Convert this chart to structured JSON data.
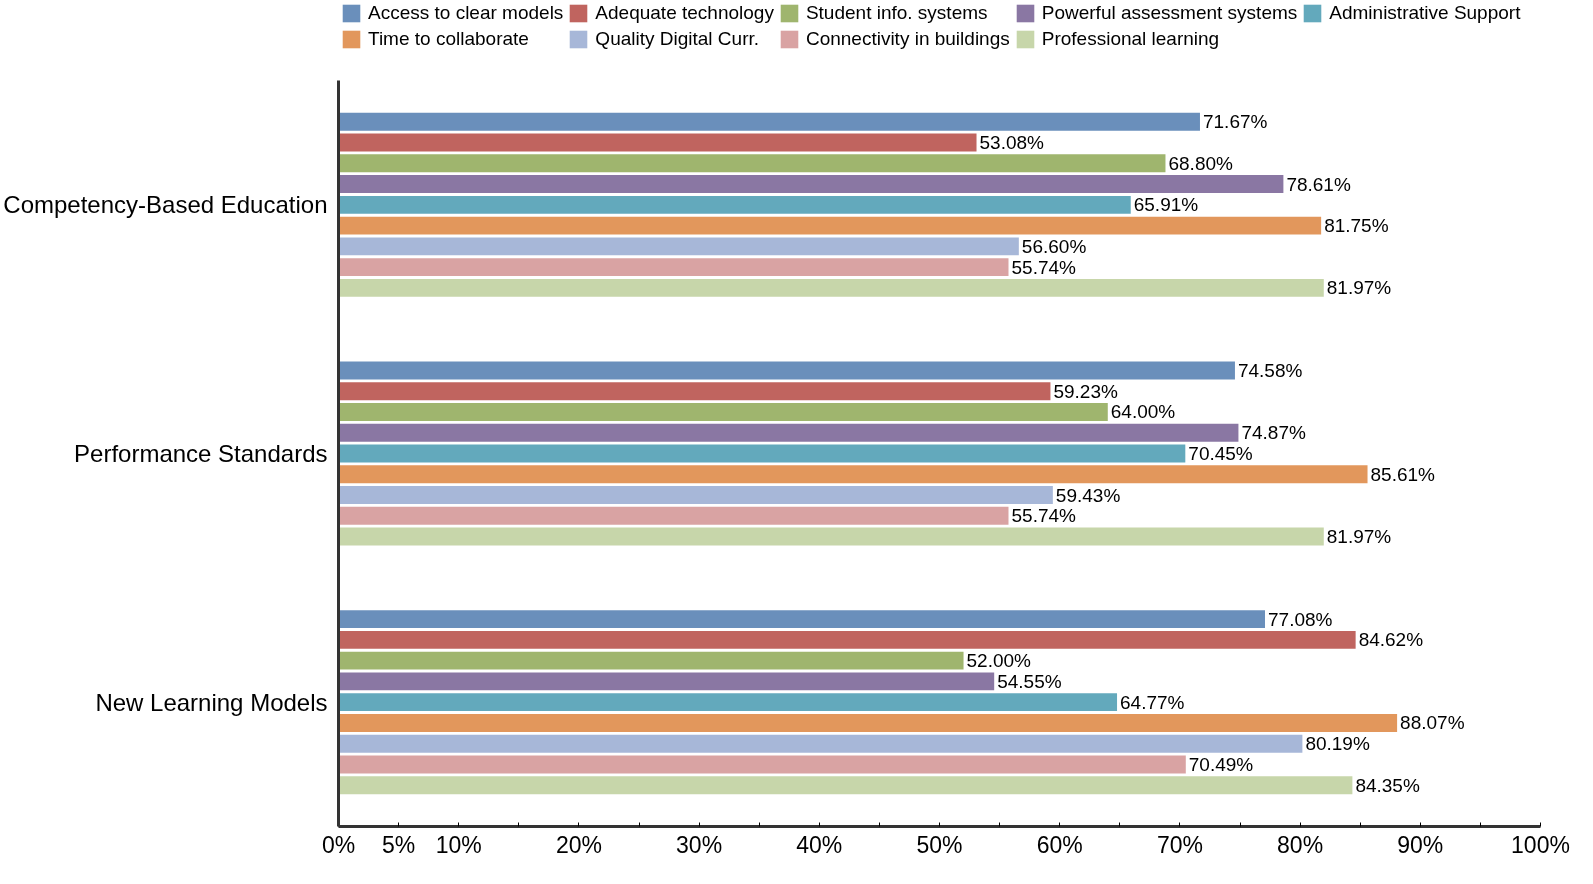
{
  "chart_data": {
    "type": "bar",
    "orientation": "horizontal",
    "legend": "top",
    "grid": false,
    "categories": [
      "Competency-Based Education",
      "Performance Standards",
      "New Learning Models"
    ],
    "xlim": [
      0,
      100
    ],
    "xticks": [
      {
        "value": 0,
        "label": "0%"
      },
      {
        "value": 5,
        "label": "5%"
      },
      {
        "value": 10,
        "label": "10%"
      },
      {
        "value": 15,
        "label": null
      },
      {
        "value": 20,
        "label": "20%"
      },
      {
        "value": 25,
        "label": null
      },
      {
        "value": 30,
        "label": "30%"
      },
      {
        "value": 35,
        "label": null
      },
      {
        "value": 40,
        "label": "40%"
      },
      {
        "value": 45,
        "label": null
      },
      {
        "value": 50,
        "label": "50%"
      },
      {
        "value": 55,
        "label": null
      },
      {
        "value": 60,
        "label": "60%"
      },
      {
        "value": 65,
        "label": null
      },
      {
        "value": 70,
        "label": "70%"
      },
      {
        "value": 75,
        "label": null
      },
      {
        "value": 80,
        "label": "80%"
      },
      {
        "value": 85,
        "label": null
      },
      {
        "value": 90,
        "label": "90%"
      },
      {
        "value": 95,
        "label": null
      },
      {
        "value": 100,
        "label": "100%"
      }
    ],
    "series": [
      {
        "name": "Access to clear models",
        "color": "#6a8fbb",
        "values": [
          71.67,
          74.58,
          77.08
        ],
        "value_labels": [
          "71.67%",
          "74.58%",
          "77.08%"
        ]
      },
      {
        "name": "Adequate technology",
        "color": "#c0645f",
        "values": [
          53.08,
          59.23,
          84.62
        ],
        "value_labels": [
          "53.08%",
          "59.23%",
          "84.62%"
        ]
      },
      {
        "name": "Student info. systems",
        "color": "#9fb56e",
        "values": [
          68.8,
          64.0,
          52.0
        ],
        "value_labels": [
          "68.80%",
          "64.00%",
          "52.00%"
        ]
      },
      {
        "name": "Powerful assessment systems",
        "color": "#8a77a3",
        "values": [
          78.61,
          74.87,
          54.55
        ],
        "value_labels": [
          "78.61%",
          "74.87%",
          "54.55%"
        ]
      },
      {
        "name": "Administrative Support",
        "color": "#63a9bc",
        "values": [
          65.91,
          70.45,
          64.77
        ],
        "value_labels": [
          "65.91%",
          "70.45%",
          "64.77%"
        ]
      },
      {
        "name": "Time to collaborate",
        "color": "#e2975c",
        "values": [
          81.75,
          85.61,
          88.07
        ],
        "value_labels": [
          "81.75%",
          "85.61%",
          "88.07%"
        ]
      },
      {
        "name": "Quality Digital Curr.",
        "color": "#a7b7d8",
        "values": [
          56.6,
          59.43,
          80.19
        ],
        "value_labels": [
          "56.60%",
          "59.43%",
          "80.19%"
        ]
      },
      {
        "name": "Connectivity in buildings",
        "color": "#d9a3a3",
        "values": [
          55.74,
          55.74,
          70.49
        ],
        "value_labels": [
          "55.74%",
          "55.74%",
          "70.49%"
        ]
      },
      {
        "name": "Professional learning",
        "color": "#c7d6aa",
        "values": [
          81.97,
          81.97,
          84.35
        ],
        "value_labels": [
          "81.97%",
          "81.97%",
          "84.35%"
        ]
      }
    ]
  }
}
